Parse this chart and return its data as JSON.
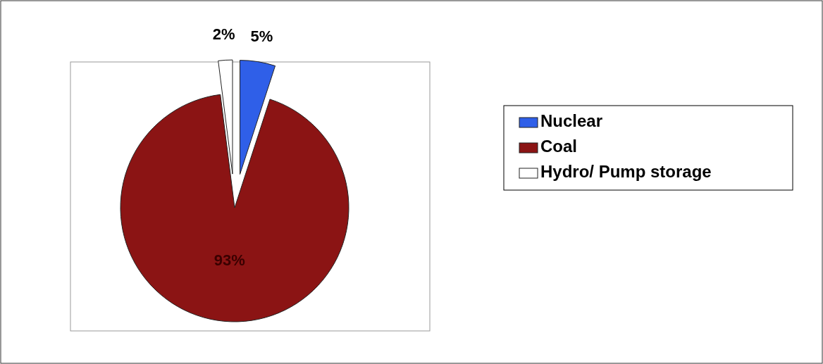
{
  "chart_data": {
    "type": "pie",
    "categories": [
      "Nuclear",
      "Coal",
      "Hydro/ Pump storage"
    ],
    "values": [
      5,
      93,
      2
    ],
    "colors": [
      "#2f5fe8",
      "#8b1414",
      "#ffffff"
    ],
    "value_labels": [
      "5%",
      "93%",
      "2%"
    ],
    "legend": "right"
  }
}
